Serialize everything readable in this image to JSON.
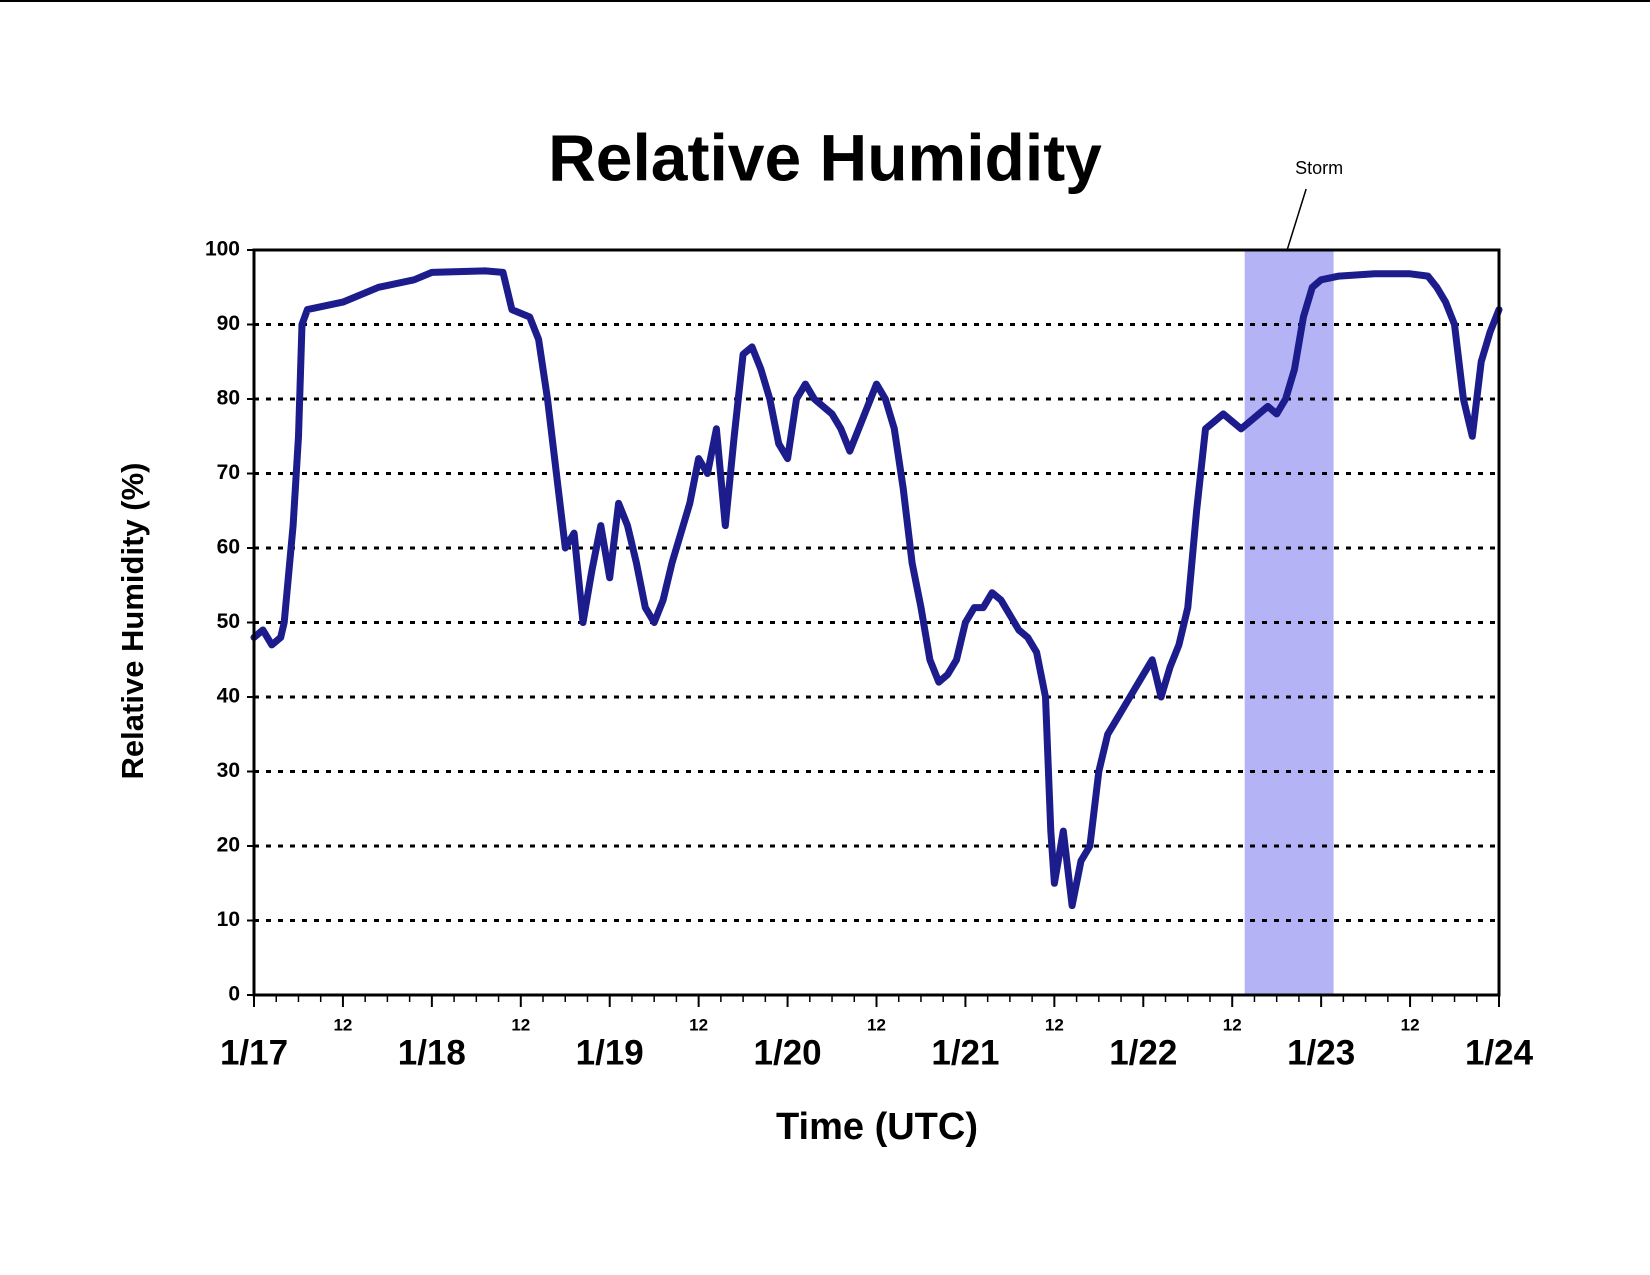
{
  "chart_data": {
    "type": "line",
    "title": "Relative Humidity",
    "x_label": "Time (UTC)",
    "y_label": "Relative Humidity (%)",
    "color": "#1c1c8c",
    "x": [
      0,
      0.05,
      0.1,
      0.15,
      0.17,
      0.22,
      0.25,
      0.27,
      0.3,
      0.5,
      0.7,
      0.9,
      1.0,
      1.3,
      1.4,
      1.45,
      1.55,
      1.6,
      1.65,
      1.7,
      1.75,
      1.8,
      1.85,
      1.9,
      1.95,
      2.0,
      2.05,
      2.1,
      2.15,
      2.2,
      2.25,
      2.3,
      2.35,
      2.4,
      2.45,
      2.5,
      2.55,
      2.6,
      2.65,
      2.7,
      2.75,
      2.8,
      2.85,
      2.9,
      2.95,
      3.0,
      3.05,
      3.1,
      3.15,
      3.2,
      3.25,
      3.3,
      3.35,
      3.4,
      3.45,
      3.5,
      3.55,
      3.6,
      3.65,
      3.7,
      3.75,
      3.8,
      3.85,
      3.9,
      3.95,
      4.0,
      4.05,
      4.1,
      4.15,
      4.2,
      4.25,
      4.3,
      4.35,
      4.4,
      4.45,
      4.48,
      4.5,
      4.55,
      4.6,
      4.65,
      4.7,
      4.75,
      4.8,
      4.85,
      4.9,
      4.95,
      5.0,
      5.05,
      5.1,
      5.15,
      5.2,
      5.25,
      5.3,
      5.35,
      5.4,
      5.45,
      5.5,
      5.55,
      5.6,
      5.65,
      5.7,
      5.75,
      5.8,
      5.85,
      5.9,
      5.95,
      6.0,
      6.1,
      6.3,
      6.5,
      6.6,
      6.65,
      6.7,
      6.75,
      6.8,
      6.85,
      6.9,
      6.95,
      7.0
    ],
    "values": [
      48,
      49,
      47,
      48,
      50,
      63,
      75,
      90,
      92,
      93,
      95,
      96,
      97,
      97.2,
      97,
      92,
      91,
      88,
      80,
      70,
      60,
      62,
      50,
      57,
      63,
      56,
      66,
      63,
      58,
      52,
      50,
      53,
      58,
      62,
      66,
      72,
      70,
      76,
      63,
      75,
      86,
      87,
      84,
      80,
      74,
      72,
      80,
      82,
      80,
      79,
      78,
      76,
      73,
      76,
      79,
      82,
      80,
      76,
      68,
      58,
      52,
      45,
      42,
      43,
      45,
      50,
      52,
      52,
      54,
      53,
      51,
      49,
      48,
      46,
      40,
      22,
      15,
      22,
      12,
      18,
      20,
      30,
      35,
      37,
      39,
      41,
      43,
      45,
      40,
      44,
      47,
      52,
      65,
      76,
      77,
      78,
      77,
      76,
      77,
      78,
      79,
      78,
      80,
      84,
      91,
      95,
      96,
      96.5,
      96.8,
      96.8,
      96.5,
      95,
      93,
      90,
      80,
      75,
      85,
      89,
      92
    ],
    "xlim": [
      0,
      7
    ],
    "xticks": [
      {
        "value": 0,
        "label": "1/17"
      },
      {
        "value": 0.5,
        "label": "12"
      },
      {
        "value": 1,
        "label": "1/18"
      },
      {
        "value": 1.5,
        "label": "12"
      },
      {
        "value": 2,
        "label": "1/19"
      },
      {
        "value": 2.5,
        "label": "12"
      },
      {
        "value": 3,
        "label": "1/20"
      },
      {
        "value": 3.5,
        "label": "12"
      },
      {
        "value": 4,
        "label": "1/21"
      },
      {
        "value": 4.5,
        "label": "12"
      },
      {
        "value": 5,
        "label": "1/22"
      },
      {
        "value": 5.5,
        "label": "12"
      },
      {
        "value": 6,
        "label": "1/23"
      },
      {
        "value": 6.5,
        "label": "12"
      },
      {
        "value": 7,
        "label": "1/24"
      }
    ],
    "xminorticks": [
      0.125,
      0.25,
      0.375,
      0.625,
      0.75,
      0.875,
      1.125,
      1.25,
      1.375,
      1.625,
      1.75,
      1.875,
      2.125,
      2.25,
      2.375,
      2.625,
      2.75,
      2.875,
      3.125,
      3.25,
      3.375,
      3.625,
      3.75,
      3.875,
      4.125,
      4.25,
      4.375,
      4.625,
      4.75,
      4.875,
      5.125,
      5.25,
      5.375,
      5.625,
      5.75,
      5.875,
      6.125,
      6.25,
      6.375,
      6.625,
      6.75,
      6.875
    ],
    "ylim": [
      0,
      100
    ],
    "yticks": [
      0,
      10,
      20,
      30,
      40,
      50,
      60,
      70,
      80,
      90,
      100
    ],
    "grid": true,
    "annotation": {
      "label": "Storm",
      "start": 5.57,
      "end": 6.07,
      "color": "#b3b3f5"
    }
  }
}
